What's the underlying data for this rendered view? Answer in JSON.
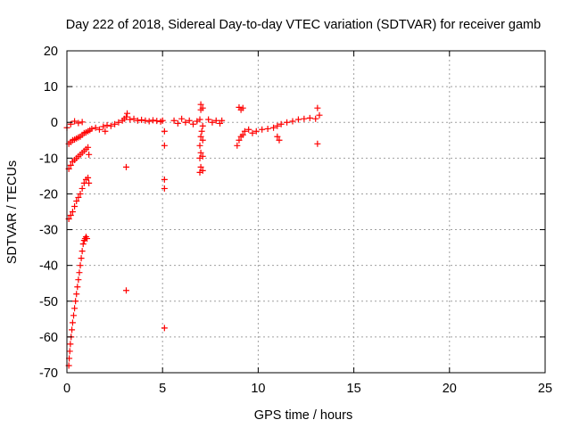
{
  "chart_data": {
    "type": "scatter",
    "title": "Day 222 of 2018, Sidereal Day-to-day VTEC variation (SDTVAR) for receiver gamb",
    "xlabel": "GPS time / hours",
    "ylabel": "SDTVAR / TECUs",
    "xlim": [
      0,
      25
    ],
    "ylim": [
      -70,
      20
    ],
    "xticks": [
      0,
      5,
      10,
      15,
      20,
      25
    ],
    "yticks": [
      -70,
      -60,
      -50,
      -40,
      -30,
      -20,
      -10,
      0,
      10,
      20
    ],
    "grid": true,
    "marker": "+",
    "color": "#ff0000",
    "series": [
      {
        "name": "SDTVAR",
        "points": [
          [
            0.1,
            -68
          ],
          [
            0.12,
            -66
          ],
          [
            0.15,
            -64
          ],
          [
            0.18,
            -62
          ],
          [
            0.22,
            -60
          ],
          [
            0.26,
            -58
          ],
          [
            0.3,
            -56
          ],
          [
            0.35,
            -54
          ],
          [
            0.4,
            -52
          ],
          [
            0.45,
            -50
          ],
          [
            0.5,
            -48
          ],
          [
            0.55,
            -46
          ],
          [
            0.6,
            -44
          ],
          [
            0.65,
            -42
          ],
          [
            0.7,
            -40
          ],
          [
            0.75,
            -38
          ],
          [
            0.8,
            -36
          ],
          [
            0.85,
            -34
          ],
          [
            0.9,
            -33
          ],
          [
            0.95,
            -32.5
          ],
          [
            1.0,
            -32
          ],
          [
            1.05,
            -32.5
          ],
          [
            0.1,
            -27
          ],
          [
            0.2,
            -26
          ],
          [
            0.3,
            -25
          ],
          [
            0.4,
            -23.5
          ],
          [
            0.5,
            -22
          ],
          [
            0.6,
            -21
          ],
          [
            0.7,
            -20
          ],
          [
            0.8,
            -18.5
          ],
          [
            0.9,
            -17
          ],
          [
            1.0,
            -16
          ],
          [
            1.1,
            -15.5
          ],
          [
            1.15,
            -17
          ],
          [
            0.1,
            -13
          ],
          [
            0.2,
            -12
          ],
          [
            0.3,
            -11
          ],
          [
            0.4,
            -10.5
          ],
          [
            0.5,
            -10
          ],
          [
            0.6,
            -9.5
          ],
          [
            0.7,
            -9
          ],
          [
            0.8,
            -8.5
          ],
          [
            0.9,
            -8
          ],
          [
            1.0,
            -7.5
          ],
          [
            1.1,
            -7
          ],
          [
            1.15,
            -9
          ],
          [
            0.1,
            -6
          ],
          [
            0.2,
            -5.5
          ],
          [
            0.3,
            -5
          ],
          [
            0.4,
            -4.8
          ],
          [
            0.5,
            -4.5
          ],
          [
            0.6,
            -4.2
          ],
          [
            0.7,
            -4
          ],
          [
            0.8,
            -3.5
          ],
          [
            0.9,
            -3
          ],
          [
            1.0,
            -2.8
          ],
          [
            1.1,
            -2.5
          ],
          [
            1.2,
            -2.2
          ],
          [
            1.3,
            -1.8
          ],
          [
            0.0,
            -1.5
          ],
          [
            0.2,
            -0.5
          ],
          [
            0.4,
            0.3
          ],
          [
            0.6,
            -0.2
          ],
          [
            0.8,
            0.1
          ],
          [
            1.5,
            -1.5
          ],
          [
            1.7,
            -2
          ],
          [
            1.9,
            -1.2
          ],
          [
            2.0,
            -2.5
          ],
          [
            2.1,
            -0.8
          ],
          [
            2.3,
            -1
          ],
          [
            2.5,
            -0.5
          ],
          [
            2.7,
            0
          ],
          [
            2.9,
            0.5
          ],
          [
            3.0,
            1
          ],
          [
            3.1,
            1.5
          ],
          [
            3.15,
            2.5
          ],
          [
            3.3,
            0.8
          ],
          [
            3.5,
            1
          ],
          [
            3.7,
            0.5
          ],
          [
            3.9,
            0.7
          ],
          [
            4.1,
            0.5
          ],
          [
            4.3,
            0.3
          ],
          [
            4.5,
            0.6
          ],
          [
            4.7,
            0.4
          ],
          [
            4.9,
            0.2
          ],
          [
            5.0,
            0.5
          ],
          [
            3.1,
            -12.5
          ],
          [
            3.1,
            -47
          ],
          [
            5.1,
            -2.5
          ],
          [
            5.1,
            -6.5
          ],
          [
            5.1,
            -16
          ],
          [
            5.1,
            -18.5
          ],
          [
            5.1,
            -57.5
          ],
          [
            5.6,
            0.5
          ],
          [
            5.8,
            -0.3
          ],
          [
            6.0,
            1
          ],
          [
            6.2,
            0
          ],
          [
            6.4,
            0.5
          ],
          [
            6.6,
            -0.5
          ],
          [
            6.8,
            0.3
          ],
          [
            6.95,
            0.8
          ],
          [
            7.0,
            5
          ],
          [
            7.1,
            4
          ],
          [
            7.0,
            3.5
          ],
          [
            7.1,
            -1
          ],
          [
            7.05,
            -2.5
          ],
          [
            7.0,
            -4
          ],
          [
            7.1,
            -5
          ],
          [
            6.95,
            -6.5
          ],
          [
            7.0,
            -8.5
          ],
          [
            7.1,
            -9.5
          ],
          [
            6.95,
            -10
          ],
          [
            7.0,
            -12.5
          ],
          [
            7.1,
            -13.5
          ],
          [
            6.95,
            -14
          ],
          [
            7.4,
            0.8
          ],
          [
            7.6,
            0
          ],
          [
            7.8,
            0.5
          ],
          [
            8.0,
            -0.3
          ],
          [
            8.1,
            0.5
          ],
          [
            9.0,
            4.2
          ],
          [
            9.1,
            3.5
          ],
          [
            9.2,
            4
          ],
          [
            8.9,
            -6.5
          ],
          [
            9.0,
            -5
          ],
          [
            9.1,
            -4
          ],
          [
            9.2,
            -3.5
          ],
          [
            9.3,
            -2.5
          ],
          [
            9.5,
            -2
          ],
          [
            9.7,
            -3
          ],
          [
            9.9,
            -2.5
          ],
          [
            10.2,
            -2
          ],
          [
            10.5,
            -1.8
          ],
          [
            10.8,
            -1.5
          ],
          [
            11.0,
            -1
          ],
          [
            11.2,
            -0.5
          ],
          [
            11.5,
            0
          ],
          [
            11.8,
            0.3
          ],
          [
            12.1,
            0.8
          ],
          [
            12.4,
            1
          ],
          [
            12.7,
            1.2
          ],
          [
            13.0,
            1
          ],
          [
            11.0,
            -4
          ],
          [
            11.1,
            -5
          ],
          [
            13.1,
            4
          ],
          [
            13.2,
            2
          ],
          [
            13.1,
            -6
          ]
        ]
      }
    ]
  }
}
